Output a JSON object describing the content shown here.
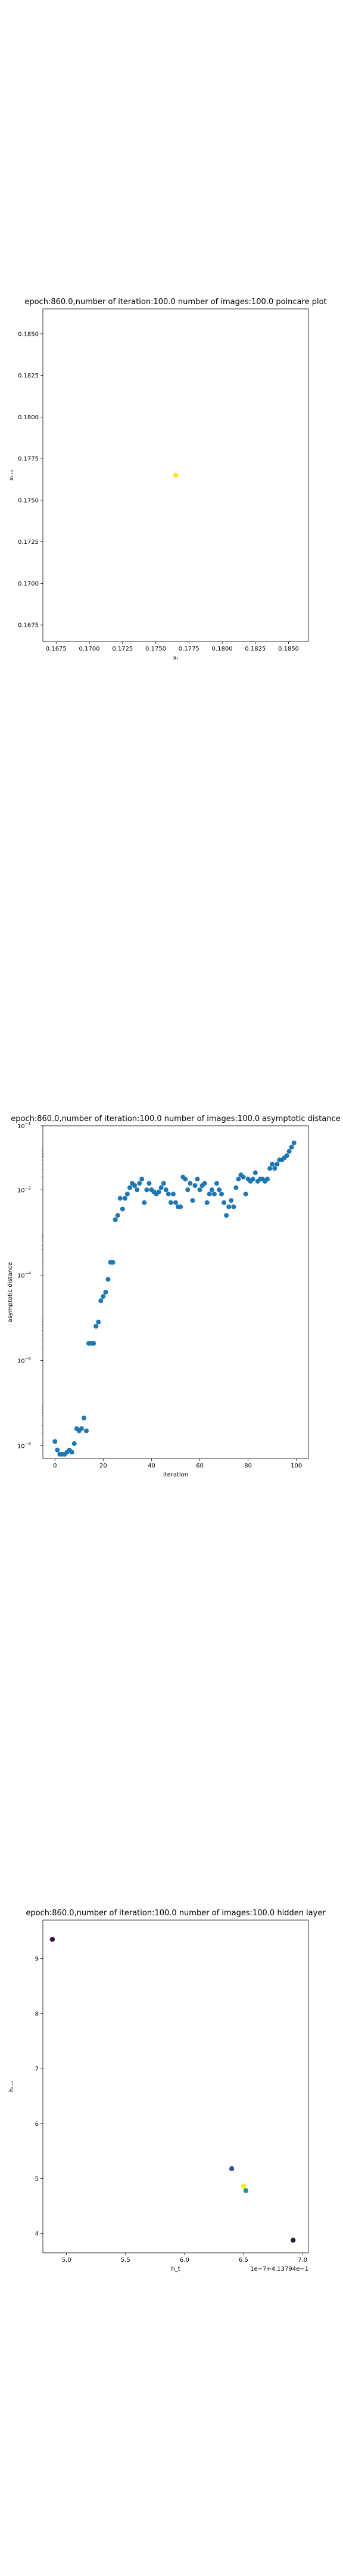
{
  "charts": [
    {
      "type": "scatter",
      "title": "epoch:860.0,number of iteration:100.0 number of images:100.0 poincare plot",
      "xlabel": "xₜ",
      "ylabel": "xₜ₊₁",
      "xlim": [
        0.1665,
        0.1865
      ],
      "ylim": [
        0.1665,
        0.1865
      ],
      "xticks": [
        0.1675,
        0.17,
        0.1725,
        0.175,
        0.1775,
        0.18,
        0.1825,
        0.185
      ],
      "yticks": [
        0.1675,
        0.17,
        0.1725,
        0.175,
        0.1775,
        0.18,
        0.1825,
        0.185
      ],
      "xtick_labels": [
        "0.1675",
        "0.1700",
        "0.1725",
        "0.1750",
        "0.1775",
        "0.1800",
        "0.1825",
        "0.1850"
      ],
      "ytick_labels": [
        "0.1675",
        "0.1700",
        "0.1725",
        "0.1750",
        "0.1775",
        "0.1800",
        "0.1825",
        "0.1850"
      ],
      "point_color": "#fde725",
      "points": [
        {
          "x": 0.1765,
          "y": 0.1765
        }
      ]
    },
    {
      "type": "scatter",
      "title": "epoch:860.0,number of iteration:100.0  number of images:100.0 asymptotic distance",
      "xlabel": "iteration",
      "ylabel": "asymptotic distance",
      "xlim": [
        -5,
        105
      ],
      "ylim_log10": [
        -8.3,
        -0.5
      ],
      "yscale": "log",
      "xticks": [
        0,
        20,
        40,
        60,
        80,
        100
      ],
      "xtick_labels": [
        "0",
        "20",
        "40",
        "60",
        "80",
        "100"
      ],
      "ytick_exps": [
        -8,
        -6,
        -4,
        -2
      ],
      "ytick_labels": [
        "10",
        "10",
        "10",
        "10",
        "10"
      ],
      "ytick_sup": [
        "−8",
        "−6",
        "−4",
        "−2",
        "−1"
      ],
      "ytick_extra": -0.5,
      "point_color": "#1f77b4",
      "x": [
        0,
        1,
        2,
        3,
        4,
        5,
        6,
        7,
        8,
        9,
        10,
        11,
        12,
        13,
        14,
        15,
        16,
        17,
        18,
        19,
        20,
        21,
        22,
        23,
        24,
        25,
        26,
        27,
        28,
        29,
        30,
        31,
        32,
        33,
        34,
        35,
        36,
        37,
        38,
        39,
        40,
        41,
        42,
        43,
        44,
        45,
        46,
        47,
        48,
        49,
        50,
        51,
        52,
        53,
        54,
        55,
        56,
        57,
        58,
        59,
        60,
        61,
        62,
        63,
        64,
        65,
        66,
        67,
        68,
        69,
        70,
        71,
        72,
        73,
        74,
        75,
        76,
        77,
        78,
        79,
        80,
        81,
        82,
        83,
        84,
        85,
        86,
        87,
        88,
        89,
        90,
        91,
        92,
        93,
        94,
        95,
        96,
        97,
        98,
        99
      ],
      "log10_y": [
        -7.9,
        -8.1,
        -8.2,
        -8.2,
        -8.2,
        -8.15,
        -8.1,
        -8.15,
        -7.95,
        -7.6,
        -7.65,
        -7.6,
        -7.35,
        -7.65,
        -5.6,
        -5.6,
        -5.6,
        -5.2,
        -5.1,
        -4.6,
        -4.5,
        -4.4,
        -4.1,
        -3.7,
        -3.7,
        -2.7,
        -2.6,
        -2.2,
        -2.45,
        -2.2,
        -2.1,
        -1.95,
        -1.85,
        -1.9,
        -2.0,
        -1.85,
        -1.75,
        -2.3,
        -2.0,
        -1.85,
        -2.0,
        -2.05,
        -2.1,
        -2.05,
        -1.95,
        -1.85,
        -2.0,
        -2.1,
        -2.3,
        -2.1,
        -2.3,
        -2.4,
        -2.4,
        -1.7,
        -1.75,
        -2.0,
        -1.85,
        -2.25,
        -1.9,
        -1.75,
        -2.0,
        -1.9,
        -1.85,
        -2.3,
        -2.1,
        -2.0,
        -2.1,
        -1.85,
        -2.0,
        -2.1,
        -2.3,
        -2.6,
        -2.4,
        -2.25,
        -2.4,
        -1.95,
        -1.75,
        -1.65,
        -1.7,
        -2.1,
        -1.75,
        -1.8,
        -1.75,
        -1.6,
        -1.8,
        -1.75,
        -1.75,
        -1.8,
        -1.75,
        -1.5,
        -1.4,
        -1.5,
        -1.4,
        -1.3,
        -1.3,
        -1.25,
        -1.2,
        -1.1,
        -1.0,
        -0.9
      ]
    },
    {
      "type": "scatter",
      "title": "epoch:860.0,number of iteration:100.0  number of images:100.0 hidden layer",
      "xlabel": "h_t",
      "ylabel": "hₜ₊₁",
      "offset_text": "1e−7+4.13794e−1",
      "xlim": [
        4.8,
        7.05
      ],
      "ylim": [
        3.65,
        9.7
      ],
      "xticks": [
        5.0,
        5.5,
        6.0,
        6.5,
        7.0
      ],
      "yticks": [
        4,
        5,
        6,
        7,
        8,
        9
      ],
      "xtick_labels": [
        "5.0",
        "5.5",
        "6.0",
        "6.5",
        "7.0"
      ],
      "ytick_labels": [
        "4",
        "5",
        "6",
        "7",
        "8",
        "9"
      ],
      "points": [
        {
          "x": 4.88,
          "y": 9.35,
          "color": "#440154"
        },
        {
          "x": 6.4,
          "y": 5.18,
          "color": "#3b528b"
        },
        {
          "x": 6.5,
          "y": 4.86,
          "color": "#fde725"
        },
        {
          "x": 6.52,
          "y": 4.78,
          "color": "#21918c"
        },
        {
          "x": 6.92,
          "y": 3.88,
          "color": "#1f1f44"
        }
      ]
    }
  ]
}
